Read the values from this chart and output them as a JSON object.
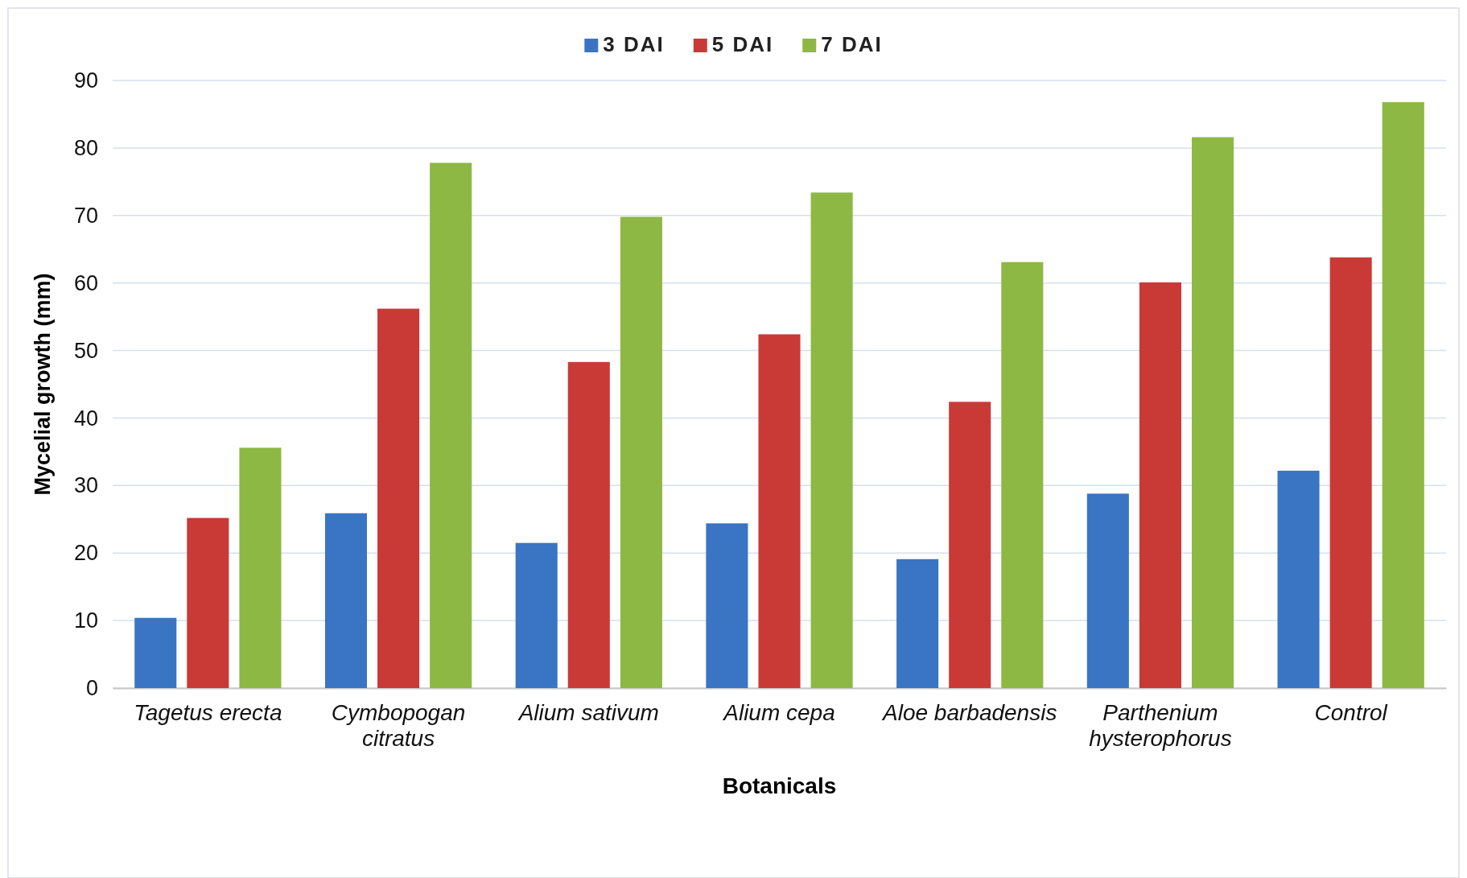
{
  "chart_data": {
    "type": "bar",
    "xlabel": "Botanicals",
    "ylabel": "Mycelial growth (mm)",
    "categories": [
      "Tagetus erecta",
      "Cymbopogan citratus",
      "Alium sativum",
      "Alium cepa",
      "Aloe barbadensis",
      "Parthenium hysterophorus",
      "Control"
    ],
    "series": [
      {
        "name": "3 DAI",
        "color": "#3a75c4",
        "values": [
          10.4,
          25.9,
          21.5,
          24.4,
          19.1,
          28.8,
          32.2
        ]
      },
      {
        "name": "5 DAI",
        "color": "#c93a36",
        "values": [
          25.2,
          56.2,
          48.3,
          52.4,
          42.4,
          60.1,
          63.8
        ]
      },
      {
        "name": "7 DAI",
        "color": "#8db843",
        "values": [
          35.6,
          77.8,
          69.8,
          73.4,
          63.1,
          81.6,
          86.8
        ]
      }
    ],
    "ylim": [
      0,
      90
    ],
    "yticks": [
      0,
      10,
      20,
      30,
      40,
      50,
      60,
      70,
      80,
      90
    ],
    "grid": "y",
    "legend": "top"
  }
}
